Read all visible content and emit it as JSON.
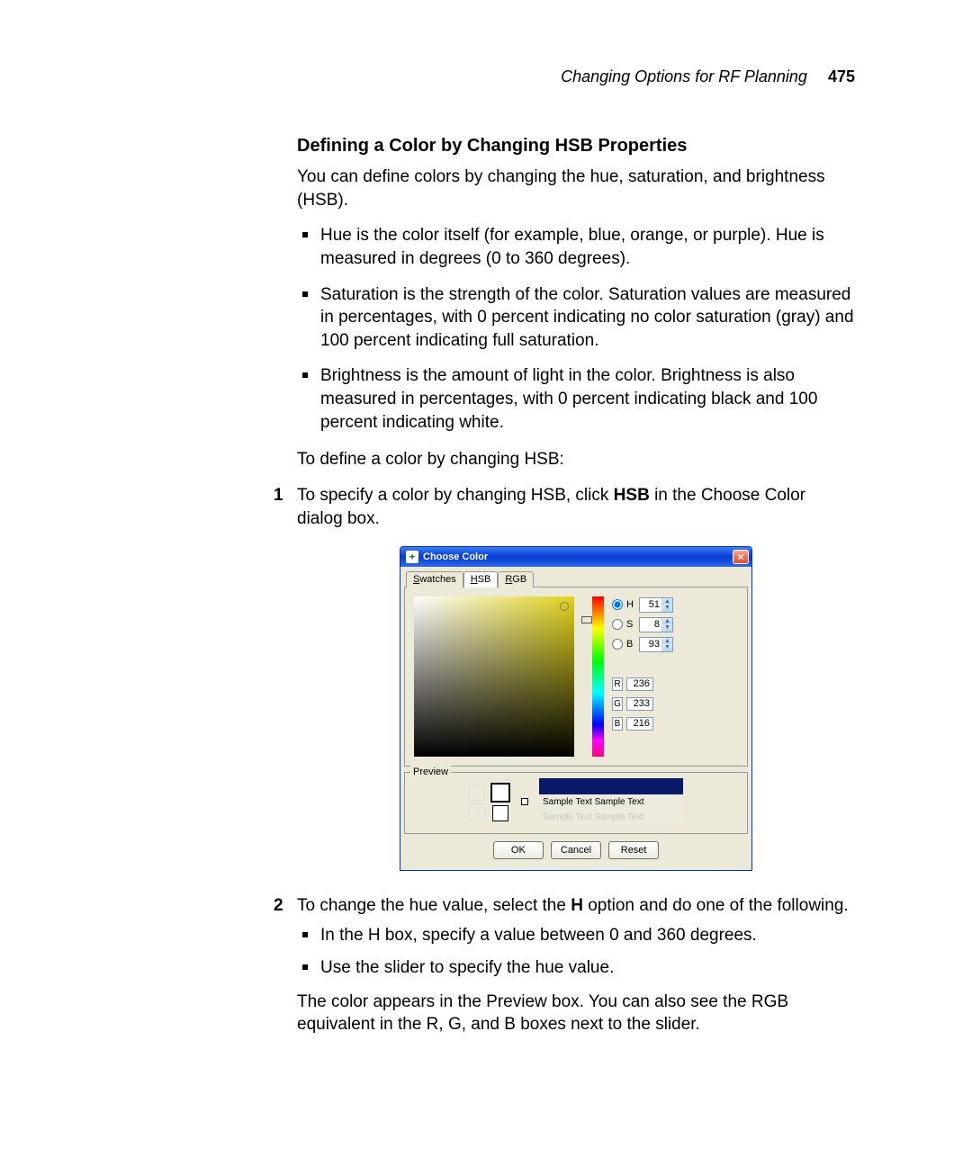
{
  "header": {
    "running": "Changing Options for RF Planning",
    "page": "475"
  },
  "section": {
    "title": "Defining a Color by Changing HSB Properties",
    "intro": "You can define colors by changing the hue, saturation, and brightness (HSB).",
    "bullets": [
      "Hue is the color itself (for example, blue, orange, or purple). Hue is measured in degrees (0 to 360 degrees).",
      "Saturation is the strength of the color. Saturation values are measured in percentages, with 0 percent indicating no color saturation (gray) and 100 percent indicating full saturation.",
      "Brightness is the amount of light in the color. Brightness is also measured in percentages, with 0 percent indicating black and 100 percent indicating white."
    ],
    "toline": "To define a color by changing HSB:",
    "step1_a": "To specify a color by changing HSB, click ",
    "step1_bold": "HSB",
    "step1_b": " in the Choose Color dialog box.",
    "step2_a": "To change the hue value, select the ",
    "step2_bold": "H",
    "step2_b": " option and do one of the following.",
    "step2_sub": [
      "In the H box, specify a value between 0 and 360 degrees.",
      "Use the slider to specify the hue value."
    ],
    "step2_after": "The color appears in the Preview box. You can also see the RGB equivalent in the R, G, and B boxes next to the slider."
  },
  "dialog": {
    "title": "Choose Color",
    "tabs": {
      "swatches": "Swatches",
      "hsb": "HSB",
      "rgb": "RGB",
      "swatches_mn": "S",
      "hsb_mn": "H",
      "rgb_mn": "R",
      "swatches_rest": "watches",
      "hsb_rest": "SB",
      "rgb_rest": "GB"
    },
    "hsb": {
      "h_label": "H",
      "s_label": "S",
      "b_label": "B",
      "h": "51",
      "s": "8",
      "b": "93",
      "selected": "H"
    },
    "rgb": {
      "r_label": "R",
      "g_label": "G",
      "b_label": "B",
      "r": "236",
      "g": "233",
      "b": "216"
    },
    "current_color": "#ece9d8",
    "old_color": "#0a1a6a",
    "gradient_right_color": "#e0d21a",
    "preview": {
      "label": "Preview",
      "sample": "Sample Text Sample Text"
    },
    "buttons": {
      "ok": "OK",
      "cancel": "Cancel",
      "reset": "Reset"
    },
    "titlebar_bg_from": "#3a80f3",
    "titlebar_bg_to": "#0a3fd6",
    "panel_bg": "#ece9d8",
    "border_color": "#919b9c",
    "input_border": "#7f9db9"
  }
}
